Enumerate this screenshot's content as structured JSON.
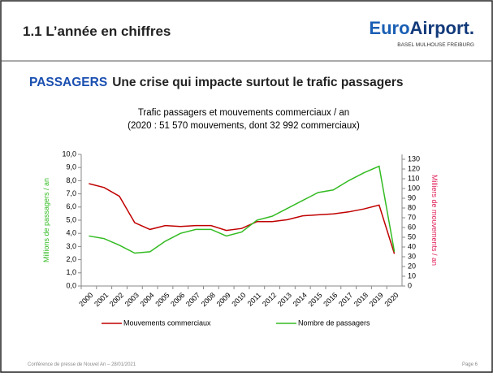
{
  "header": {
    "title": "1.1 L’année en chiffres",
    "logo_part1": "Euro",
    "logo_part2": "Airport.",
    "logo_subtitle": "BASEL  MULHOUSE  FREIBURG"
  },
  "headline": {
    "keyword": "PASSAGERS",
    "text": "Une crise qui impacte surtout le trafic passagers"
  },
  "footer": {
    "left": "Conférence de presse de Nouvel An – 28/01/2021",
    "right": "Page 6"
  },
  "chart_data": {
    "type": "line",
    "title": "Trafic passagers et mouvements commerciaux / an",
    "subtitle": "(2020 : 51 570 mouvements, dont 32 992 commerciaux)",
    "y_label": "Millions de passagers / an",
    "y2_label": "Milliers de mouvements / an",
    "categories": [
      "2000",
      "2001",
      "2002",
      "2003",
      "2004",
      "2005",
      "2006",
      "2007",
      "2008",
      "2009",
      "2010",
      "2011",
      "2012",
      "2013",
      "2014",
      "2015",
      "2016",
      "2017",
      "2018",
      "2019",
      "2020"
    ],
    "series": [
      {
        "name": "Mouvements commerciaux",
        "color": "#c00000",
        "axis": "y2",
        "values": [
          105,
          101,
          92,
          65,
          58,
          62,
          61,
          62,
          62,
          57,
          59,
          66,
          66,
          68,
          72,
          73,
          74,
          76,
          79,
          83,
          33
        ]
      },
      {
        "name": "Nombre de passagers",
        "color": "#33bb22",
        "values": [
          3.8,
          3.6,
          3.1,
          2.5,
          2.6,
          3.4,
          4.0,
          4.3,
          4.3,
          3.8,
          4.1,
          5.0,
          5.3,
          5.9,
          6.5,
          7.1,
          7.3,
          8.0,
          8.6,
          9.1,
          2.6
        ]
      }
    ],
    "ylim": [
      0,
      10
    ],
    "yticks": [
      {
        "value": 0,
        "label": "0,0"
      },
      {
        "value": 1,
        "label": "1,0"
      },
      {
        "value": 2,
        "label": "2,0"
      },
      {
        "value": 3,
        "label": "3,0"
      },
      {
        "value": 4,
        "label": "4,0"
      },
      {
        "value": 5,
        "label": "5,0"
      },
      {
        "value": 6,
        "label": "6,0"
      },
      {
        "value": 7,
        "label": "7,0"
      },
      {
        "value": 8,
        "label": "8,0"
      },
      {
        "value": 9,
        "label": "9,0"
      },
      {
        "value": 10,
        "label": "10,0"
      }
    ],
    "y2lim": [
      0,
      135
    ],
    "y2ticks": [
      0,
      10,
      20,
      30,
      40,
      50,
      60,
      70,
      80,
      90,
      100,
      110,
      120,
      130
    ],
    "grid": false
  }
}
